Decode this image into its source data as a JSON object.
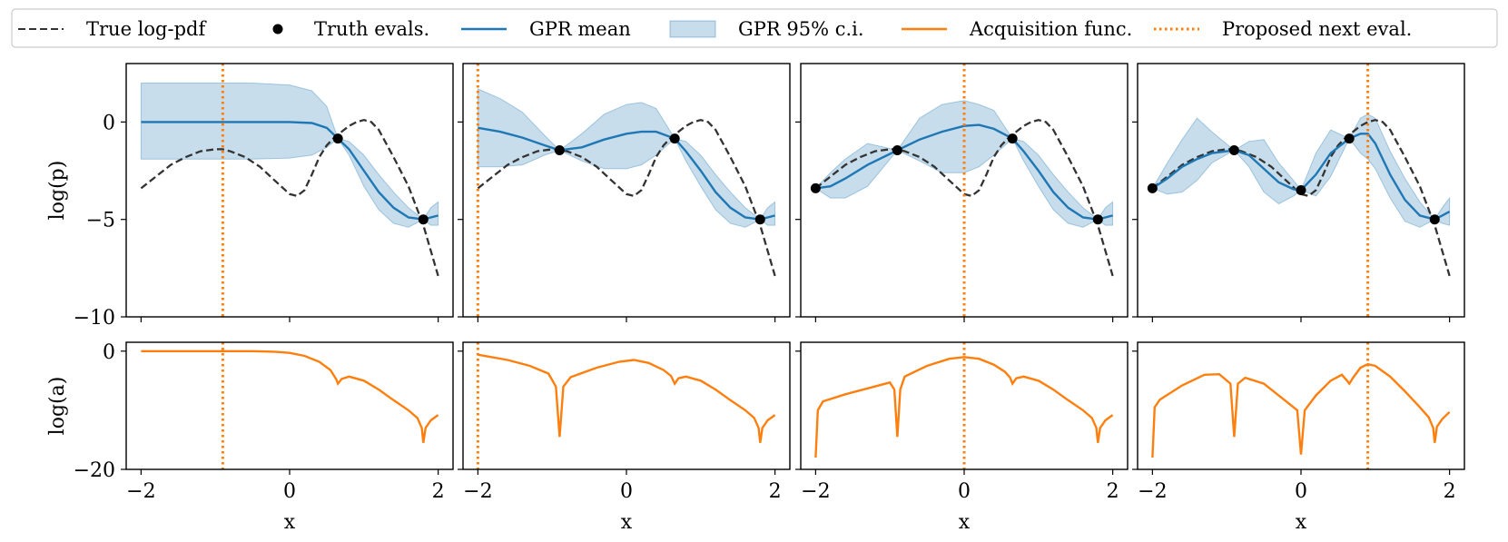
{
  "chart_data": {
    "type": "line",
    "legend": {
      "placement": "top",
      "entries": [
        {
          "key": "true",
          "label": "True log-pdf",
          "style": "dashed",
          "color": "#333333"
        },
        {
          "key": "evals",
          "label": "Truth evals.",
          "style": "marker",
          "color": "#000000"
        },
        {
          "key": "mean",
          "label": "GPR mean",
          "style": "solid",
          "color": "#1f77b4"
        },
        {
          "key": "ci",
          "label": "GPR 95% c.i.",
          "style": "band",
          "color": "#1f77b4"
        },
        {
          "key": "acq",
          "label": "Acquisition func.",
          "style": "solid",
          "color": "#ff7f0e"
        },
        {
          "key": "next",
          "label": "Proposed next eval.",
          "style": "dotted",
          "color": "#ff7f0e"
        }
      ]
    },
    "xlabel": "x",
    "ylabel_top": "log(p)",
    "ylabel_bottom": "log(a)",
    "xlim": [
      -2.2,
      2.2
    ],
    "ylim_top": [
      -10,
      3
    ],
    "ylim_bottom": [
      -20,
      1.5
    ],
    "xticks": [
      -2,
      0,
      2
    ],
    "xtick_labels": [
      "−2",
      "0",
      "2"
    ],
    "yticks_top": [
      0,
      -5,
      -10
    ],
    "ytick_labels_top": [
      "0",
      "−5",
      "−10"
    ],
    "yticks_bottom": [
      0,
      -20
    ],
    "ytick_labels_bottom": [
      "0",
      "−20"
    ],
    "true_logpdf": {
      "x": [
        -2.0,
        -1.8,
        -1.6,
        -1.4,
        -1.2,
        -1.0,
        -0.9,
        -0.8,
        -0.6,
        -0.4,
        -0.2,
        0.0,
        0.1,
        0.2,
        0.3,
        0.4,
        0.5,
        0.6,
        0.7,
        0.8,
        0.9,
        1.0,
        1.1,
        1.2,
        1.4,
        1.6,
        1.8,
        2.0
      ],
      "y": [
        -3.4,
        -2.8,
        -2.2,
        -1.8,
        -1.5,
        -1.4,
        -1.4,
        -1.5,
        -1.8,
        -2.3,
        -3.0,
        -3.7,
        -3.8,
        -3.5,
        -2.7,
        -1.8,
        -1.2,
        -0.8,
        -0.5,
        -0.2,
        0.0,
        0.1,
        0.0,
        -0.4,
        -1.8,
        -3.3,
        -5.3,
        -7.9
      ]
    },
    "panels": [
      {
        "name": "iteration-1",
        "evals": {
          "x": [
            0.65,
            1.8
          ],
          "y": [
            -0.85,
            -5.0
          ]
        },
        "next_eval": -0.9,
        "gpr": {
          "x": [
            -2.0,
            -1.5,
            -1.0,
            -0.5,
            0.0,
            0.3,
            0.5,
            0.65,
            0.8,
            1.0,
            1.2,
            1.4,
            1.6,
            1.8,
            1.9,
            2.0
          ],
          "mean": [
            0.0,
            0.0,
            0.0,
            0.0,
            0.0,
            -0.05,
            -0.3,
            -0.85,
            -1.4,
            -2.5,
            -3.6,
            -4.4,
            -4.9,
            -5.0,
            -4.9,
            -4.8
          ],
          "lower": [
            -1.9,
            -1.9,
            -1.9,
            -1.9,
            -1.85,
            -1.7,
            -1.3,
            -0.85,
            -1.7,
            -3.3,
            -4.5,
            -5.2,
            -5.4,
            -5.0,
            -5.3,
            -5.3
          ],
          "upper": [
            2.0,
            2.0,
            2.0,
            2.0,
            1.9,
            1.6,
            0.8,
            -0.85,
            -1.0,
            -1.7,
            -2.7,
            -3.6,
            -4.4,
            -5.0,
            -4.4,
            -4.1
          ]
        },
        "acquisition": {
          "x": [
            -2.0,
            -1.5,
            -1.0,
            -0.5,
            -0.2,
            0.0,
            0.2,
            0.4,
            0.55,
            0.63,
            0.65,
            0.7,
            0.8,
            1.0,
            1.2,
            1.4,
            1.6,
            1.72,
            1.78,
            1.8,
            1.83,
            1.9,
            2.0
          ],
          "y": [
            0.0,
            0.0,
            0.0,
            0.0,
            -0.1,
            -0.3,
            -0.8,
            -1.8,
            -3.2,
            -4.8,
            -5.5,
            -4.7,
            -4.3,
            -5.0,
            -6.5,
            -8.3,
            -10.0,
            -11.3,
            -13.0,
            -15.5,
            -13.0,
            -11.7,
            -10.8
          ]
        }
      },
      {
        "name": "iteration-2",
        "evals": {
          "x": [
            -0.9,
            0.65,
            1.8
          ],
          "y": [
            -1.45,
            -0.85,
            -5.0
          ]
        },
        "next_eval": -2.0,
        "gpr": {
          "x": [
            -2.0,
            -1.7,
            -1.4,
            -1.1,
            -0.9,
            -0.6,
            -0.3,
            0.0,
            0.2,
            0.4,
            0.65,
            0.8,
            1.0,
            1.2,
            1.4,
            1.6,
            1.8,
            1.9,
            2.0
          ],
          "mean": [
            -0.3,
            -0.5,
            -0.8,
            -1.2,
            -1.45,
            -1.3,
            -0.9,
            -0.6,
            -0.5,
            -0.5,
            -0.85,
            -1.5,
            -2.5,
            -3.6,
            -4.4,
            -4.9,
            -5.0,
            -4.9,
            -4.8
          ],
          "lower": [
            -2.3,
            -2.3,
            -2.2,
            -1.7,
            -1.45,
            -2.0,
            -2.4,
            -2.4,
            -2.2,
            -1.7,
            -0.85,
            -2.0,
            -3.3,
            -4.5,
            -5.2,
            -5.4,
            -5.0,
            -5.3,
            -5.3
          ],
          "upper": [
            1.7,
            1.2,
            0.5,
            -0.7,
            -1.45,
            -0.6,
            0.4,
            0.9,
            1.0,
            0.7,
            -0.85,
            -1.0,
            -1.7,
            -2.7,
            -3.6,
            -4.4,
            -5.0,
            -4.4,
            -4.1
          ]
        },
        "acquisition": {
          "x": [
            -2.0,
            -1.6,
            -1.3,
            -1.05,
            -0.95,
            -0.9,
            -0.85,
            -0.75,
            -0.4,
            -0.1,
            0.1,
            0.3,
            0.5,
            0.6,
            0.65,
            0.7,
            0.8,
            1.0,
            1.2,
            1.4,
            1.6,
            1.72,
            1.78,
            1.8,
            1.83,
            1.9,
            2.0
          ],
          "y": [
            -0.6,
            -1.5,
            -2.5,
            -3.8,
            -6.0,
            -14.5,
            -6.0,
            -4.4,
            -2.8,
            -1.8,
            -1.5,
            -2.0,
            -3.2,
            -4.2,
            -5.5,
            -4.6,
            -4.3,
            -5.0,
            -6.5,
            -8.3,
            -10.0,
            -11.3,
            -13.0,
            -15.5,
            -13.0,
            -11.7,
            -10.8
          ]
        }
      },
      {
        "name": "iteration-3",
        "evals": {
          "x": [
            -2.0,
            -0.9,
            0.65,
            1.8
          ],
          "y": [
            -3.4,
            -1.45,
            -0.85,
            -5.0
          ]
        },
        "next_eval": 0.0,
        "gpr": {
          "x": [
            -2.0,
            -1.8,
            -1.6,
            -1.3,
            -0.9,
            -0.6,
            -0.3,
            0.0,
            0.2,
            0.4,
            0.65,
            0.8,
            1.0,
            1.2,
            1.4,
            1.6,
            1.8,
            1.9,
            2.0
          ],
          "mean": [
            -3.4,
            -3.3,
            -2.9,
            -2.2,
            -1.45,
            -0.9,
            -0.5,
            -0.2,
            -0.15,
            -0.35,
            -0.85,
            -1.5,
            -2.5,
            -3.6,
            -4.4,
            -4.9,
            -5.0,
            -4.9,
            -4.8
          ],
          "lower": [
            -3.4,
            -3.9,
            -3.9,
            -3.3,
            -1.45,
            -2.0,
            -2.6,
            -2.6,
            -2.3,
            -1.7,
            -0.85,
            -2.0,
            -3.3,
            -4.5,
            -5.2,
            -5.4,
            -5.0,
            -5.3,
            -5.3
          ],
          "upper": [
            -3.4,
            -2.6,
            -1.9,
            -1.1,
            -1.45,
            0.2,
            0.9,
            1.1,
            0.9,
            0.6,
            -0.85,
            -1.0,
            -1.7,
            -2.7,
            -3.6,
            -4.4,
            -5.0,
            -4.4,
            -4.1
          ]
        },
        "acquisition": {
          "x": [
            -2.0,
            -1.97,
            -1.9,
            -1.6,
            -1.3,
            -1.0,
            -0.94,
            -0.9,
            -0.86,
            -0.8,
            -0.5,
            -0.2,
            0.0,
            0.2,
            0.4,
            0.55,
            0.62,
            0.65,
            0.7,
            0.8,
            1.0,
            1.2,
            1.4,
            1.6,
            1.72,
            1.78,
            1.8,
            1.83,
            1.9,
            2.0
          ],
          "y": [
            -18.0,
            -10.0,
            -8.5,
            -7.3,
            -6.3,
            -5.3,
            -6.5,
            -14.5,
            -6.5,
            -4.3,
            -2.5,
            -1.3,
            -1.0,
            -1.3,
            -2.3,
            -3.5,
            -4.5,
            -5.5,
            -4.6,
            -4.3,
            -5.0,
            -6.5,
            -8.3,
            -10.0,
            -11.3,
            -13.0,
            -15.5,
            -13.0,
            -11.7,
            -10.8
          ]
        }
      },
      {
        "name": "iteration-4",
        "evals": {
          "x": [
            -2.0,
            -0.9,
            0.0,
            0.65,
            1.8
          ],
          "y": [
            -3.4,
            -1.45,
            -3.5,
            -0.85,
            -5.0
          ]
        },
        "next_eval": 0.9,
        "gpr": {
          "x": [
            -2.0,
            -1.8,
            -1.6,
            -1.4,
            -1.2,
            -0.9,
            -0.7,
            -0.5,
            -0.3,
            -0.1,
            0.0,
            0.2,
            0.4,
            0.65,
            0.8,
            0.9,
            1.0,
            1.2,
            1.4,
            1.6,
            1.8,
            1.9,
            2.0
          ],
          "mean": [
            -3.4,
            -2.9,
            -2.3,
            -1.9,
            -1.6,
            -1.45,
            -1.7,
            -2.4,
            -3.1,
            -3.45,
            -3.5,
            -2.7,
            -1.6,
            -0.85,
            -0.6,
            -0.6,
            -1.1,
            -2.7,
            -4.0,
            -4.8,
            -5.0,
            -4.8,
            -4.6
          ],
          "lower": [
            -3.4,
            -3.7,
            -3.6,
            -3.0,
            -2.1,
            -1.45,
            -2.3,
            -3.6,
            -4.2,
            -3.8,
            -3.5,
            -3.8,
            -2.8,
            -0.85,
            -1.6,
            -1.9,
            -2.4,
            -3.9,
            -5.1,
            -5.4,
            -5.0,
            -5.2,
            -5.3
          ],
          "upper": [
            -3.4,
            -2.1,
            -0.9,
            0.2,
            -0.5,
            -1.45,
            -1.0,
            -0.9,
            -2.1,
            -3.0,
            -3.5,
            -1.6,
            -0.4,
            -0.85,
            0.2,
            0.4,
            0.2,
            -1.5,
            -2.9,
            -4.1,
            -5.0,
            -4.4,
            -3.9
          ]
        },
        "acquisition": {
          "x": [
            -2.0,
            -1.97,
            -1.9,
            -1.6,
            -1.3,
            -1.1,
            -0.95,
            -0.9,
            -0.85,
            -0.75,
            -0.5,
            -0.2,
            -0.05,
            0.0,
            0.05,
            0.2,
            0.4,
            0.55,
            0.62,
            0.65,
            0.7,
            0.8,
            0.9,
            1.0,
            1.2,
            1.4,
            1.6,
            1.72,
            1.78,
            1.8,
            1.83,
            1.9,
            2.0
          ],
          "y": [
            -18.0,
            -9.5,
            -8.2,
            -5.8,
            -4.0,
            -3.9,
            -5.5,
            -14.5,
            -5.5,
            -4.5,
            -5.5,
            -8.5,
            -10.0,
            -17.5,
            -10.0,
            -7.5,
            -5.0,
            -4.0,
            -5.0,
            -5.5,
            -4.5,
            -2.8,
            -2.2,
            -2.5,
            -4.3,
            -6.8,
            -9.5,
            -11.2,
            -13.0,
            -15.5,
            -12.8,
            -11.5,
            -10.3
          ]
        }
      }
    ]
  }
}
